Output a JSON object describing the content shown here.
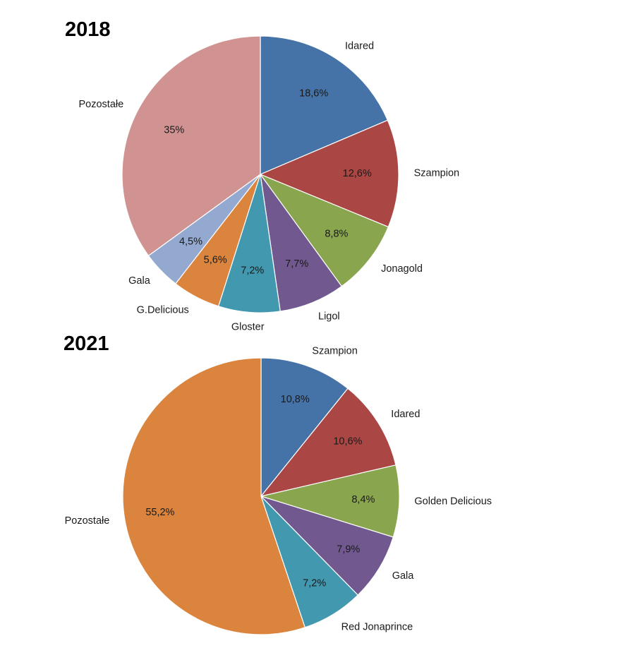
{
  "colors": {
    "blue": "#4572a7",
    "red": "#aa4643",
    "green": "#89a54e",
    "purple": "#71588f",
    "teal": "#4198af",
    "orange": "#db843d",
    "lightblue": "#93a9cf",
    "pink": "#d19392"
  },
  "chart_data": [
    {
      "type": "pie",
      "title": "2018",
      "slices": [
        {
          "label": "Idared",
          "value": 18.6,
          "display": "18,6%",
          "color": "#4572a7"
        },
        {
          "label": "Szampion",
          "value": 12.6,
          "display": "12,6%",
          "color": "#aa4643"
        },
        {
          "label": "Jonagold",
          "value": 8.8,
          "display": "8,8%",
          "color": "#89a54e"
        },
        {
          "label": "Ligol",
          "value": 7.7,
          "display": "7,7%",
          "color": "#71588f"
        },
        {
          "label": "Gloster",
          "value": 7.2,
          "display": "7,2%",
          "color": "#4198af"
        },
        {
          "label": "G.Delicious",
          "value": 5.6,
          "display": "5,6%",
          "color": "#db843d"
        },
        {
          "label": "Gala",
          "value": 4.5,
          "display": "4,5%",
          "color": "#93a9cf"
        },
        {
          "label": "Pozostałe",
          "value": 35.0,
          "display": "35%",
          "color": "#d19392"
        }
      ]
    },
    {
      "type": "pie",
      "title": "2021",
      "slices": [
        {
          "label": "Szampion",
          "value": 10.8,
          "display": "10,8%",
          "color": "#4572a7"
        },
        {
          "label": "Idared",
          "value": 10.6,
          "display": "10,6%",
          "color": "#aa4643"
        },
        {
          "label": "Golden Delicious",
          "value": 8.4,
          "display": "8,4%",
          "color": "#89a54e"
        },
        {
          "label": "Gala",
          "value": 7.9,
          "display": "7,9%",
          "color": "#71588f"
        },
        {
          "label": "Red Jonaprince",
          "value": 7.2,
          "display": "7,2%",
          "color": "#4198af"
        },
        {
          "label": "Pozostałe",
          "value": 55.2,
          "display": "55,2%",
          "color": "#db843d"
        }
      ]
    }
  ]
}
